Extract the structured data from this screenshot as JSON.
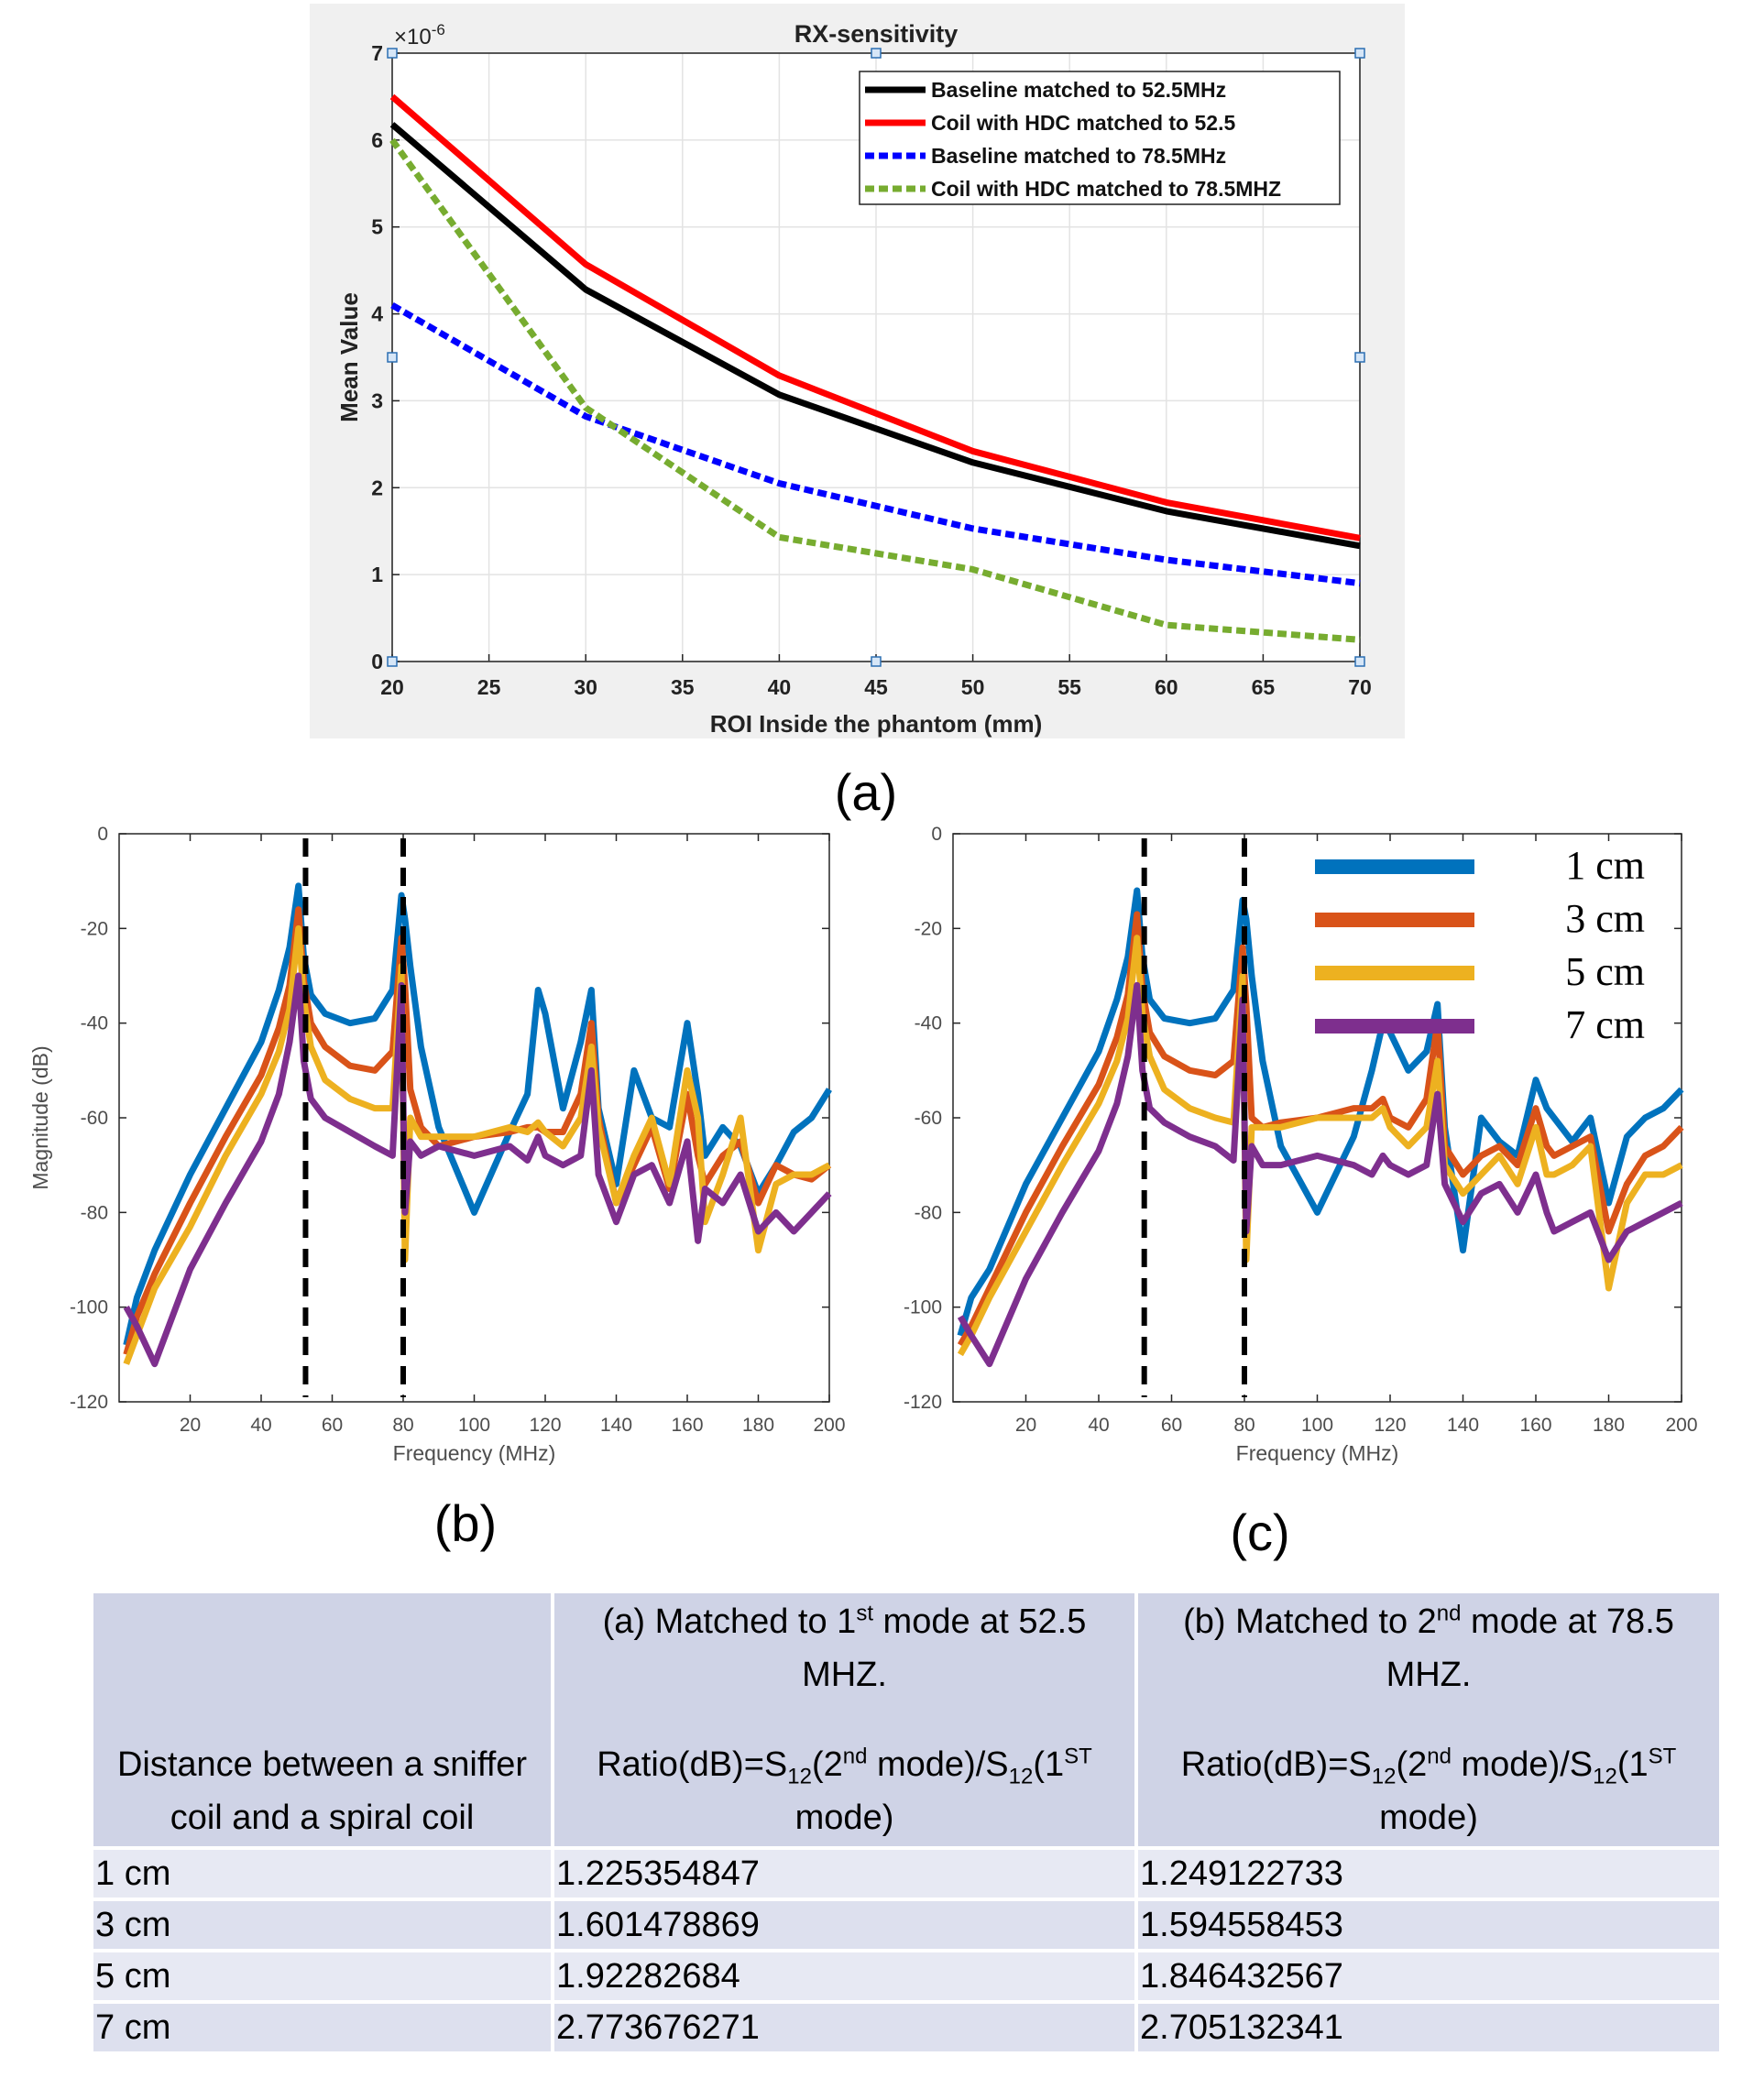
{
  "colors": {
    "black": "#000000",
    "red": "#ff0000",
    "blue": "#0000ff",
    "green": "#77ac30",
    "c1": "#0072bd",
    "c3": "#d95319",
    "c5": "#edb120",
    "c7": "#7e2f8e",
    "table_header": "#cfd3e6",
    "table_row": "#e7e9f3"
  },
  "captions": {
    "a": "(a)",
    "b": "(b)",
    "c": "(c)"
  },
  "chart_data": [
    {
      "id": "a",
      "type": "line",
      "title": "RX-sensitivity",
      "xlabel": "ROI Inside the phantom (mm)",
      "ylabel": "Mean Value",
      "y_multiplier": "×10",
      "y_multiplier_exp": "-6",
      "xlim": [
        20,
        70
      ],
      "ylim": [
        0,
        7
      ],
      "xticks": [
        "20",
        "25",
        "30",
        "35",
        "40",
        "45",
        "50",
        "55",
        "60",
        "65",
        "70"
      ],
      "yticks": [
        "0",
        "1",
        "2",
        "3",
        "4",
        "5",
        "6",
        "7"
      ],
      "legend_position": "top-right",
      "x": [
        20,
        30,
        40,
        50,
        60,
        70
      ],
      "series": [
        {
          "name": "Baseline matched to 52.5MHz",
          "color": "#000000",
          "dash": "solid",
          "values": [
            6.18,
            4.28,
            3.07,
            2.29,
            1.73,
            1.33
          ]
        },
        {
          "name": "Coil with HDC matched to 52.5",
          "color": "#ff0000",
          "dash": "solid",
          "values": [
            6.5,
            4.57,
            3.29,
            2.42,
            1.83,
            1.42
          ]
        },
        {
          "name": "Baseline matched to 78.5MHz",
          "color": "#0000ff",
          "dash": "dotted",
          "values": [
            4.1,
            2.82,
            2.05,
            1.53,
            1.17,
            0.9
          ]
        },
        {
          "name": "Coil with HDC matched to 78.5MHZ",
          "color": "#77ac30",
          "dash": "dotted",
          "values": [
            6.0,
            2.92,
            1.43,
            1.06,
            0.42,
            0.25
          ]
        }
      ]
    },
    {
      "id": "b",
      "type": "line",
      "title": "",
      "xlabel": "Frequency (MHz)",
      "ylabel": "Magnitude (dB)",
      "xlim": [
        0,
        200
      ],
      "ylim": [
        -120,
        0
      ],
      "xticks": [
        "20",
        "40",
        "60",
        "80",
        "100",
        "120",
        "140",
        "160",
        "180",
        "200"
      ],
      "yticks": [
        "0",
        "-20",
        "-40",
        "-60",
        "-80",
        "-100",
        "-120"
      ],
      "vlines": [
        52.5,
        80
      ],
      "x": [
        2,
        5,
        10,
        20,
        30,
        40,
        45,
        48,
        50.5,
        52,
        54,
        58,
        65,
        72,
        77,
        79.5,
        80.5,
        82,
        85,
        90,
        100,
        110,
        115,
        118,
        120,
        125,
        130,
        133,
        135,
        140,
        145,
        150,
        155,
        160,
        163,
        165,
        170,
        175,
        180,
        185,
        190,
        195,
        200
      ],
      "series": [
        {
          "name": "1 cm",
          "color": "#0072bd",
          "values": [
            -108,
            -98,
            -88,
            -72,
            -58,
            -44,
            -33,
            -24,
            -11,
            -26,
            -34,
            -38,
            -40,
            -39,
            -33,
            -13,
            -18,
            -28,
            -45,
            -62,
            -80,
            -63,
            -55,
            -33,
            -38,
            -58,
            -44,
            -33,
            -58,
            -74,
            -50,
            -60,
            -62,
            -40,
            -55,
            -68,
            -62,
            -66,
            -76,
            -70,
            -63,
            -60,
            -54
          ]
        },
        {
          "name": "3 cm",
          "color": "#d95319",
          "values": [
            -110,
            -102,
            -93,
            -78,
            -64,
            -51,
            -41,
            -32,
            -16,
            -31,
            -40,
            -45,
            -49,
            -50,
            -46,
            -22,
            -32,
            -54,
            -62,
            -66,
            -64,
            -63,
            -62,
            -62,
            -63,
            -63,
            -55,
            -40,
            -60,
            -78,
            -70,
            -62,
            -75,
            -55,
            -68,
            -74,
            -68,
            -65,
            -78,
            -70,
            -72,
            -73,
            -70
          ]
        },
        {
          "name": "5 cm",
          "color": "#edb120",
          "values": [
            -112,
            -106,
            -96,
            -83,
            -68,
            -55,
            -46,
            -37,
            -20,
            -35,
            -45,
            -52,
            -56,
            -58,
            -58,
            -28,
            -90,
            -60,
            -64,
            -64,
            -64,
            -62,
            -63,
            -61,
            -63,
            -66,
            -60,
            -45,
            -62,
            -78,
            -68,
            -60,
            -74,
            -50,
            -60,
            -82,
            -72,
            -60,
            -88,
            -74,
            -72,
            -72,
            -70
          ]
        },
        {
          "name": "7 cm",
          "color": "#7e2f8e",
          "values": [
            -100,
            -104,
            -112,
            -92,
            -78,
            -65,
            -55,
            -44,
            -30,
            -48,
            -56,
            -60,
            -63,
            -66,
            -68,
            -32,
            -80,
            -65,
            -68,
            -66,
            -68,
            -66,
            -69,
            -64,
            -68,
            -70,
            -68,
            -50,
            -72,
            -82,
            -72,
            -70,
            -78,
            -65,
            -86,
            -75,
            -78,
            -72,
            -84,
            -80,
            -84,
            -80,
            -76
          ]
        }
      ]
    },
    {
      "id": "c",
      "type": "line",
      "title": "",
      "xlabel": "Frequency (MHz)",
      "ylabel": "",
      "xlim": [
        0,
        200
      ],
      "ylim": [
        -120,
        0
      ],
      "xticks": [
        "20",
        "40",
        "60",
        "80",
        "100",
        "120",
        "140",
        "160",
        "180",
        "200"
      ],
      "yticks": [
        "0",
        "-20",
        "-40",
        "-60",
        "-80",
        "-100",
        "-120"
      ],
      "vlines": [
        52.5,
        80
      ],
      "legend_position": "top-right",
      "x": [
        2,
        5,
        10,
        20,
        30,
        40,
        45,
        48,
        50.5,
        52,
        54,
        58,
        65,
        72,
        77,
        79.5,
        80.5,
        82,
        85,
        90,
        100,
        110,
        115,
        118,
        120,
        125,
        130,
        133,
        135,
        140,
        145,
        150,
        155,
        160,
        163,
        165,
        170,
        175,
        180,
        185,
        190,
        195,
        200
      ],
      "series": [
        {
          "name": "1 cm",
          "color": "#0072bd",
          "values": [
            -106,
            -98,
            -92,
            -74,
            -60,
            -46,
            -35,
            -26,
            -12,
            -26,
            -35,
            -39,
            -40,
            -39,
            -33,
            -14,
            -18,
            -30,
            -48,
            -66,
            -80,
            -64,
            -50,
            -40,
            -42,
            -50,
            -46,
            -36,
            -62,
            -88,
            -60,
            -65,
            -68,
            -52,
            -58,
            -60,
            -65,
            -60,
            -78,
            -64,
            -60,
            -58,
            -54
          ]
        },
        {
          "name": "3 cm",
          "color": "#d95319",
          "values": [
            -108,
            -104,
            -96,
            -80,
            -66,
            -53,
            -43,
            -34,
            -17,
            -33,
            -42,
            -47,
            -50,
            -51,
            -48,
            -24,
            -36,
            -60,
            -62,
            -61,
            -60,
            -58,
            -58,
            -56,
            -60,
            -62,
            -56,
            -40,
            -66,
            -72,
            -68,
            -66,
            -70,
            -58,
            -66,
            -68,
            -66,
            -64,
            -84,
            -74,
            -68,
            -66,
            -62
          ]
        },
        {
          "name": "5 cm",
          "color": "#edb120",
          "values": [
            -110,
            -106,
            -98,
            -84,
            -70,
            -57,
            -48,
            -39,
            -22,
            -38,
            -47,
            -54,
            -58,
            -60,
            -61,
            -30,
            -90,
            -62,
            -62,
            -62,
            -60,
            -60,
            -60,
            -58,
            -62,
            -66,
            -62,
            -48,
            -70,
            -76,
            -72,
            -68,
            -74,
            -62,
            -72,
            -72,
            -70,
            -66,
            -96,
            -78,
            -72,
            -72,
            -70
          ]
        },
        {
          "name": "7 cm",
          "color": "#7e2f8e",
          "values": [
            -102,
            -106,
            -112,
            -94,
            -80,
            -67,
            -57,
            -47,
            -32,
            -50,
            -58,
            -61,
            -64,
            -66,
            -69,
            -35,
            -84,
            -66,
            -70,
            -70,
            -68,
            -70,
            -72,
            -68,
            -70,
            -72,
            -70,
            -55,
            -74,
            -82,
            -76,
            -74,
            -80,
            -72,
            -80,
            -84,
            -82,
            -80,
            -90,
            -84,
            -82,
            -80,
            -78
          ]
        }
      ]
    }
  ],
  "table": {
    "header": {
      "c0": [
        "Distance between a sniffer",
        "coil and a spiral coil"
      ],
      "c1_title_a": "(a) Matched to 1",
      "c1_title_sup": "st",
      "c1_title_b": " mode at 52.5",
      "c1_title_c": "MHZ.",
      "c2_title_a": "(b) Matched to 2",
      "c2_title_sup": "nd",
      "c2_title_b": "  mode at 78.5",
      "c2_title_c": "MHZ.",
      "ratio_a": "Ratio(dB)=S",
      "ratio_sub1": "12",
      "ratio_b": "(2",
      "ratio_sup1": "nd",
      "ratio_c": " mode)/S",
      "ratio_sub2": "12",
      "ratio_d": "(1",
      "ratio_sup2": "ST",
      "ratio_e": "mode)"
    },
    "rows": [
      {
        "distance": "1 cm",
        "a": "1.225354847",
        "b": "1.249122733"
      },
      {
        "distance": "3 cm",
        "a": "1.601478869",
        "b": "1.594558453"
      },
      {
        "distance": "5 cm",
        "a": "1.92282684",
        "b": "1.846432567"
      },
      {
        "distance": "7 cm",
        "a": "2.773676271",
        "b": "2.705132341"
      }
    ]
  }
}
